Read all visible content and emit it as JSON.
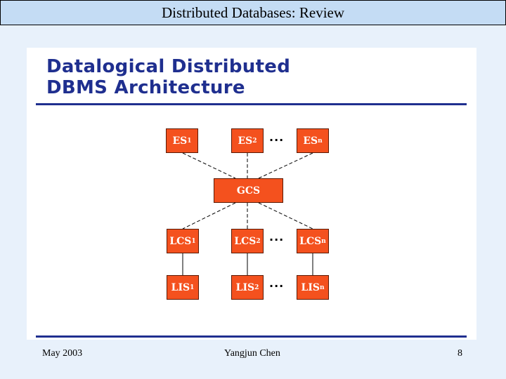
{
  "header": {
    "title": "Distributed Databases: Review"
  },
  "slide": {
    "title_line1": "Datalogical Distributed",
    "title_line2": "DBMS Architecture"
  },
  "diagram": {
    "es": [
      {
        "base": "ES",
        "sub": "1"
      },
      {
        "base": "ES",
        "sub": "2"
      },
      {
        "base": "ES",
        "sub": "n"
      }
    ],
    "gcs": "GCS",
    "lcs": [
      {
        "base": "LCS",
        "sub": "1"
      },
      {
        "base": "LCS",
        "sub": "2"
      },
      {
        "base": "LCS",
        "sub": "n"
      }
    ],
    "lis": [
      {
        "base": "LIS",
        "sub": "1"
      },
      {
        "base": "LIS",
        "sub": "2"
      },
      {
        "base": "LIS",
        "sub": "n"
      }
    ],
    "ellipsis": "..."
  },
  "footer": {
    "date": "May 2003",
    "author": "Yangjun Chen",
    "page": "8"
  }
}
